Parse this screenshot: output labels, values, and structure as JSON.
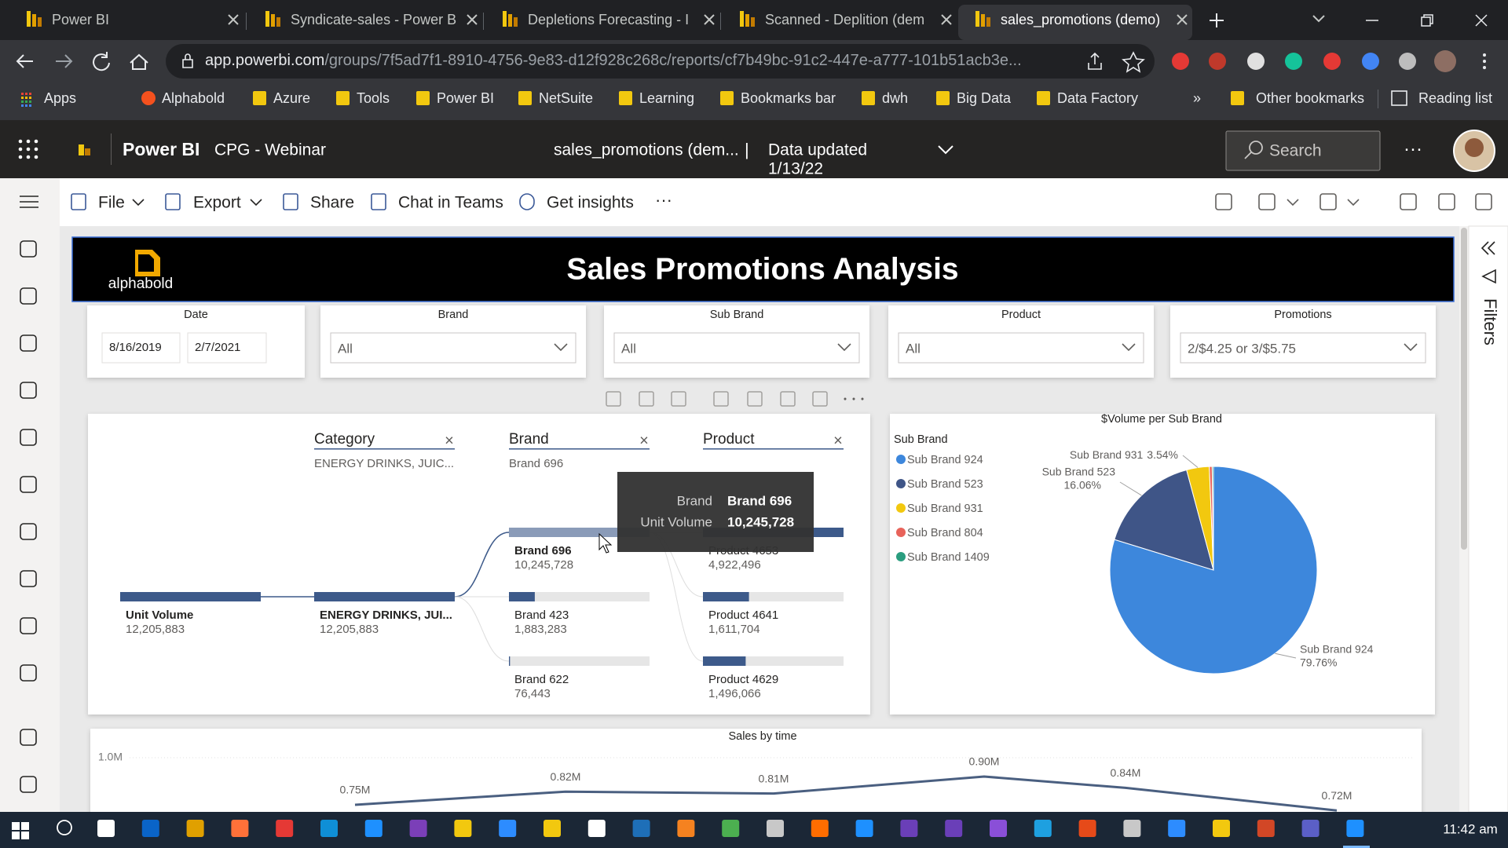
{
  "browser": {
    "tabs": [
      "Power BI",
      "Syndicate-sales - Power B",
      "Depletions Forecasting - I",
      "Scanned - Deplition (dem",
      "sales_promotions (demo)"
    ],
    "url_host": "app.powerbi.com",
    "url_path": "/groups/7f5ad7f1-8910-4756-9e83-d12f928c268c/reports/cf7b49bc-91c2-447e-a777-101b51acb3e...",
    "bookmarks": [
      "Apps",
      "Alphabold",
      "Azure",
      "Tools",
      "Power BI",
      "NetSuite",
      "Learning",
      "Bookmarks bar",
      "dwh",
      "Big Data",
      "Data Factory"
    ],
    "more": "»",
    "other_bookmarks": "Other bookmarks",
    "reading_list": "Reading list"
  },
  "app_header": {
    "product": "Power BI",
    "workspace": "CPG - Webinar",
    "report": "sales_promotions (dem...",
    "separator": "|",
    "data_updated": "Data updated",
    "date": "1/13/22",
    "search": "Search",
    "more": "···"
  },
  "toolbar": {
    "items": [
      "File",
      "Export",
      "Share",
      "Chat in Teams",
      "Get insights"
    ],
    "more": "···"
  },
  "report": {
    "logo": "alphabold",
    "title": "Sales Promotions Analysis"
  },
  "slicers": [
    {
      "label": "Date",
      "values": [
        "8/16/2019",
        "2/7/2021"
      ]
    },
    {
      "label": "Brand",
      "value": "All"
    },
    {
      "label": "Sub Brand",
      "value": "All"
    },
    {
      "label": "Product",
      "value": "All"
    },
    {
      "label": "Promotions",
      "value": "2/$4.25 or 3/$5.75"
    }
  ],
  "decomposition_tree": {
    "columns": [
      {
        "header": "Category",
        "selection": "ENERGY DRINKS, JUIC..."
      },
      {
        "header": "Brand",
        "selection": "Brand 696"
      },
      {
        "header": "Product"
      }
    ],
    "close": "×",
    "root": {
      "name": "Unit Volume",
      "value": 12205883,
      "value_label": "12,205,883"
    },
    "category": {
      "name": "ENERGY DRINKS, JUI...",
      "value": 12205883,
      "value_label": "12,205,883"
    },
    "brands": [
      {
        "name": "Brand 696",
        "value": 10245728,
        "value_label": "10,245,728"
      },
      {
        "name": "Brand 423",
        "value": 1883283,
        "value_label": "1,883,283"
      },
      {
        "name": "Brand 622",
        "value": 76443,
        "value_label": "76,443"
      }
    ],
    "products": [
      {
        "name": "Product 4653",
        "value": 4922496,
        "value_label": "4,922,496"
      },
      {
        "name": "Product 4641",
        "value": 1611704,
        "value_label": "1,611,704"
      },
      {
        "name": "Product 4629",
        "value": 1496066,
        "value_label": "1,496,066"
      }
    ]
  },
  "tooltip": {
    "rows": [
      {
        "label": "Brand",
        "value": "Brand 696"
      },
      {
        "label": "Unit Volume",
        "value": "10,245,728"
      }
    ]
  },
  "chart_data": [
    {
      "type": "pie",
      "title": "$Volume per Sub Brand",
      "legend_title": "Sub Brand",
      "categories": [
        "Sub Brand 924",
        "Sub Brand 523",
        "Sub Brand 931",
        "Sub Brand 804",
        "Sub Brand 1409"
      ],
      "values": [
        79.76,
        16.06,
        3.54,
        0.44,
        0.2
      ],
      "value_labels": [
        "79.76%",
        "16.06%",
        "3.54%",
        null,
        null
      ],
      "colors": [
        "#3d87dc",
        "#3f5587",
        "#f2c80f",
        "#e8635a",
        "#2a9d7f"
      ]
    },
    {
      "type": "line",
      "title": "Sales by time",
      "values": [
        750000,
        820000,
        810000,
        900000,
        840000,
        720000
      ],
      "value_labels": [
        "0.75M",
        "0.82M",
        "0.81M",
        "0.90M",
        "0.84M",
        "0.72M"
      ],
      "ylim": [
        0,
        1000000
      ],
      "yticks": [
        {
          "value": 1000000,
          "label": "1.0M"
        }
      ],
      "grid": true,
      "color": "#4a5f80"
    }
  ],
  "filters_pane": {
    "label": "Filters"
  },
  "taskbar": {
    "time": "11:42 am"
  }
}
